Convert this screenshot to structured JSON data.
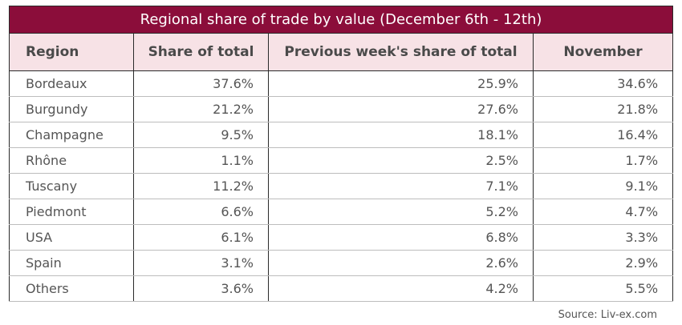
{
  "title": "Regional share of trade by value (December 6th - 12th)",
  "source": "Source: Liv-ex.com",
  "colors": {
    "title_bg": "#8b0d3a",
    "header_bg": "#f7e2e6"
  },
  "chart_data": {
    "type": "table",
    "title": "Regional share of trade by value (December 6th - 12th)",
    "columns": [
      "Region",
      "Share of total",
      "Previous week's share of total",
      "November"
    ],
    "rows": [
      [
        "Bordeaux",
        "37.6%",
        "25.9%",
        "34.6%"
      ],
      [
        "Burgundy",
        "21.2%",
        "27.6%",
        "21.8%"
      ],
      [
        "Champagne",
        "9.5%",
        "18.1%",
        "16.4%"
      ],
      [
        "Rhône",
        "1.1%",
        "2.5%",
        "1.7%"
      ],
      [
        "Tuscany",
        "11.2%",
        "7.1%",
        "9.1%"
      ],
      [
        "Piedmont",
        "6.6%",
        "5.2%",
        "4.7%"
      ],
      [
        "USA",
        "6.1%",
        "6.8%",
        "3.3%"
      ],
      [
        "Spain",
        "3.1%",
        "2.6%",
        "2.9%"
      ],
      [
        "Others",
        "3.6%",
        "4.2%",
        "5.5%"
      ]
    ]
  }
}
